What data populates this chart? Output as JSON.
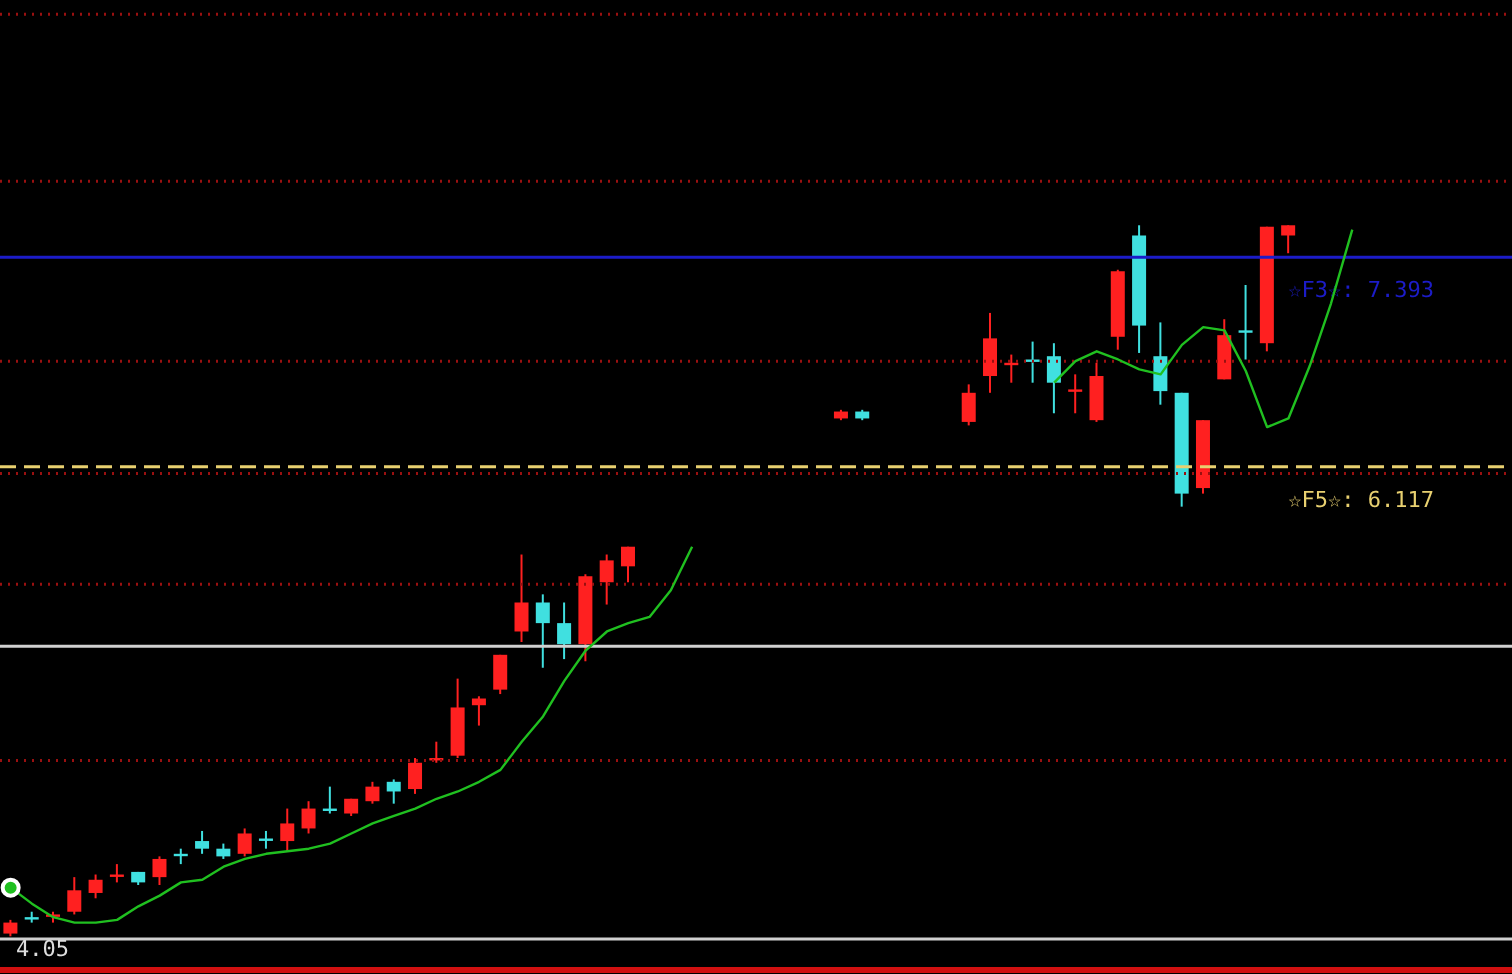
{
  "chart_data": {
    "type": "candlestick",
    "log": "y",
    "grid": "y",
    "legend": false,
    "tick_labels": false,
    "categories": [
      null,
      null,
      null,
      null,
      null,
      null,
      null,
      null,
      null,
      null,
      null,
      null,
      null,
      null,
      null,
      null,
      null,
      null,
      null,
      null,
      null,
      null,
      null,
      null,
      null,
      null,
      null,
      null,
      null,
      null,
      null,
      null,
      null,
      null,
      null,
      null,
      null,
      null,
      null,
      null,
      null,
      null,
      null,
      null,
      null,
      null,
      null,
      null,
      null,
      null,
      null,
      null,
      null,
      null,
      null,
      null,
      null,
      null,
      null,
      null,
      null,
      null,
      null,
      null,
      null,
      null,
      null,
      null,
      null,
      null,
      null
    ],
    "ylim": [
      3.88,
      9.33
    ],
    "yticks": [
      {
        "value": 4.69,
        "label": null
      },
      {
        "value": 5.5,
        "label": null
      },
      {
        "value": 6.08,
        "label": null
      },
      {
        "value": 6.73,
        "label": null
      },
      {
        "value": 7.92,
        "label": null
      },
      {
        "value": 9.21,
        "label": null
      }
    ],
    "ohlc": [
      [
        4.01,
        4.06,
        4.0,
        4.05
      ],
      [
        4.07,
        4.09,
        4.05,
        4.07
      ],
      [
        4.08,
        4.09,
        4.05,
        4.08
      ],
      [
        4.09,
        4.22,
        4.08,
        4.17
      ],
      [
        4.16,
        4.23,
        4.14,
        4.21
      ],
      [
        4.23,
        4.27,
        4.2,
        4.23
      ],
      [
        4.24,
        4.24,
        4.19,
        4.2
      ],
      [
        4.22,
        4.3,
        4.19,
        4.29
      ],
      [
        4.31,
        4.33,
        4.27,
        4.31
      ],
      [
        4.36,
        4.4,
        4.31,
        4.33
      ],
      [
        4.33,
        4.35,
        4.29,
        4.3
      ],
      [
        4.31,
        4.41,
        4.3,
        4.39
      ],
      [
        4.37,
        4.4,
        4.33,
        4.37
      ],
      [
        4.36,
        4.49,
        4.32,
        4.43
      ],
      [
        4.41,
        4.52,
        4.39,
        4.49
      ],
      [
        4.49,
        4.58,
        4.47,
        4.49
      ],
      [
        4.47,
        4.53,
        4.46,
        4.53
      ],
      [
        4.52,
        4.6,
        4.51,
        4.58
      ],
      [
        4.6,
        4.61,
        4.51,
        4.56
      ],
      [
        4.57,
        4.7,
        4.55,
        4.68
      ],
      [
        4.7,
        4.77,
        4.68,
        4.7
      ],
      [
        4.71,
        5.05,
        4.7,
        4.92
      ],
      [
        4.93,
        4.97,
        4.84,
        4.96
      ],
      [
        5.0,
        5.16,
        4.98,
        5.16
      ],
      [
        5.27,
        5.65,
        5.22,
        5.41
      ],
      [
        5.41,
        5.45,
        5.1,
        5.31
      ],
      [
        5.31,
        5.41,
        5.14,
        5.21
      ],
      [
        5.21,
        5.55,
        5.13,
        5.54
      ],
      [
        5.51,
        5.65,
        5.4,
        5.62
      ],
      [
        5.59,
        5.69,
        5.51,
        5.69
      ],
      null,
      null,
      null,
      null,
      null,
      null,
      null,
      null,
      null,
      [
        6.39,
        6.44,
        6.38,
        6.43
      ],
      [
        6.43,
        6.44,
        6.38,
        6.39
      ],
      null,
      null,
      null,
      null,
      [
        6.37,
        6.59,
        6.35,
        6.54
      ],
      [
        6.64,
        7.03,
        6.54,
        6.87
      ],
      [
        6.72,
        6.77,
        6.6,
        6.72
      ],
      [
        6.74,
        6.85,
        6.6,
        6.74
      ],
      [
        6.76,
        6.84,
        6.42,
        6.6
      ],
      [
        6.56,
        6.65,
        6.42,
        6.56
      ],
      [
        6.38,
        6.72,
        6.37,
        6.64
      ],
      [
        6.88,
        7.31,
        6.8,
        7.3
      ],
      [
        7.54,
        7.61,
        6.78,
        6.95
      ],
      [
        6.76,
        6.97,
        6.47,
        6.55
      ],
      [
        6.54,
        6.54,
        5.9,
        5.97
      ],
      [
        6.0,
        6.38,
        5.97,
        6.38
      ],
      [
        6.62,
        6.99,
        6.62,
        6.89
      ],
      [
        6.92,
        7.21,
        6.74,
        6.92
      ],
      [
        6.84,
        7.6,
        6.79,
        7.6
      ],
      [
        7.54,
        7.61,
        7.42,
        7.61
      ],
      null,
      null,
      null,
      null,
      null,
      null,
      null,
      null,
      null,
      null
    ],
    "colors": [
      "#ff2020",
      "#40e0e0",
      "#ff2020",
      "#ff2020",
      "#ff2020",
      "#ff2020",
      "#40e0e0",
      "#ff2020",
      "#40e0e0",
      "#40e0e0",
      "#40e0e0",
      "#ff2020",
      "#40e0e0",
      "#ff2020",
      "#ff2020",
      "#40e0e0",
      "#ff2020",
      "#ff2020",
      "#40e0e0",
      "#ff2020",
      "#ff2020",
      "#ff2020",
      "#ff2020",
      "#ff2020",
      "#ff2020",
      "#40e0e0",
      "#40e0e0",
      "#ff2020",
      "#ff2020",
      "#ff2020",
      null,
      null,
      null,
      null,
      null,
      null,
      null,
      null,
      null,
      "#ff2020",
      "#40e0e0",
      null,
      null,
      null,
      null,
      "#ff2020",
      "#ff2020",
      "#ff2020",
      "#40e0e0",
      "#40e0e0",
      "#ff2020",
      "#ff2020",
      "#ff2020",
      "#40e0e0",
      "#40e0e0",
      "#40e0e0",
      "#ff2020",
      "#ff2020",
      "#40e0e0",
      "#ff2020",
      "#ff2020",
      null,
      null,
      null,
      null,
      null,
      null,
      null,
      null,
      null,
      null
    ],
    "series": [
      {
        "type": "line",
        "color": "#20c020",
        "values": [
          4.18,
          4.12,
          4.07,
          4.05,
          4.05,
          4.06,
          4.11,
          4.15,
          4.2,
          4.21,
          4.26,
          4.29,
          4.31,
          4.32,
          4.33,
          4.35,
          4.39,
          4.43,
          4.46,
          4.49,
          4.53,
          4.56,
          4.6,
          4.65,
          4.77,
          4.88,
          5.04,
          5.18,
          5.27,
          5.31,
          5.34,
          5.47,
          5.69,
          null,
          null,
          null,
          null,
          null,
          null,
          null,
          null,
          null,
          null,
          null,
          null,
          null,
          null,
          null,
          null,
          6.6,
          6.73,
          6.79,
          6.74,
          6.68,
          6.65,
          6.83,
          6.94,
          6.92,
          6.67,
          6.34,
          6.39,
          6.7,
          7.09,
          7.58,
          null,
          null,
          null,
          null,
          null,
          null,
          null
        ]
      }
    ],
    "ref_lines": [
      {
        "axis": "y",
        "value": 7.393,
        "label": "☆F3☆: 7.393",
        "color": "#1c1cc8"
      },
      {
        "axis": "y",
        "value": 6.117,
        "label": "☆F5☆: 6.117",
        "color": "#e8d070",
        "line_style": "dashed"
      },
      {
        "axis": "y",
        "value": 5.2,
        "color": "#d0d0d0"
      },
      {
        "axis": "y",
        "value": 3.99,
        "color": "#d0d0d0"
      }
    ],
    "annotations": [
      "4.05"
    ]
  }
}
